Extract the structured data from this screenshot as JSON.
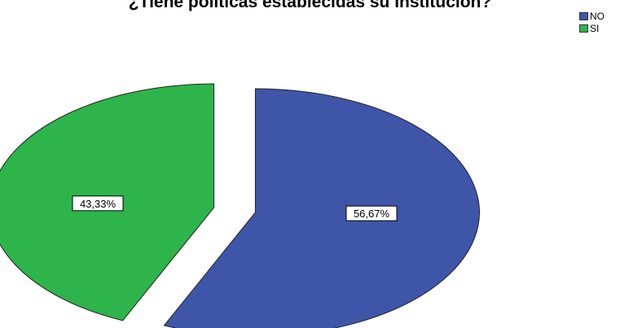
{
  "chart_data": {
    "type": "pie",
    "title": "¿Tiene políticas establecidas su institución?",
    "categories": [
      "NO",
      "SI"
    ],
    "values": [
      56.67,
      43.33
    ],
    "labels": [
      "56,67%",
      "43,33%"
    ],
    "colors": [
      "#3f55a8",
      "#2db44a"
    ],
    "exploded": true,
    "legend_position": "top-right"
  }
}
